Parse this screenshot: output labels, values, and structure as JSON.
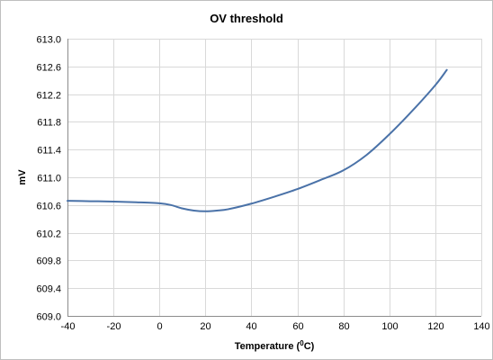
{
  "chart_data": {
    "type": "line",
    "title": "OV threshold",
    "xlabel": "Temperature (",
    "xlabel_sup": "0",
    "xlabel_suffix": "C)",
    "ylabel": "mV",
    "xlim": [
      -40,
      140
    ],
    "ylim": [
      609.0,
      613.0
    ],
    "x_ticks": [
      "-40",
      "-20",
      "0",
      "20",
      "40",
      "60",
      "80",
      "100",
      "120",
      "140"
    ],
    "y_ticks": [
      "609.0",
      "609.4",
      "609.8",
      "610.2",
      "610.6",
      "611.0",
      "611.4",
      "611.8",
      "612.2",
      "612.6",
      "613.0"
    ],
    "grid": true,
    "legend": "none",
    "series": [
      {
        "color": "#4a72a8",
        "points": [
          [
            -40,
            610.66
          ],
          [
            -30,
            610.655
          ],
          [
            -20,
            610.65
          ],
          [
            -10,
            610.64
          ],
          [
            0,
            610.625
          ],
          [
            5,
            610.6
          ],
          [
            10,
            610.55
          ],
          [
            15,
            610.52
          ],
          [
            20,
            610.51
          ],
          [
            25,
            610.52
          ],
          [
            30,
            610.54
          ],
          [
            40,
            610.62
          ],
          [
            50,
            610.72
          ],
          [
            60,
            610.83
          ],
          [
            70,
            610.96
          ],
          [
            80,
            611.1
          ],
          [
            90,
            611.32
          ],
          [
            100,
            611.62
          ],
          [
            110,
            611.96
          ],
          [
            120,
            612.33
          ],
          [
            125,
            612.55
          ]
        ]
      }
    ]
  }
}
